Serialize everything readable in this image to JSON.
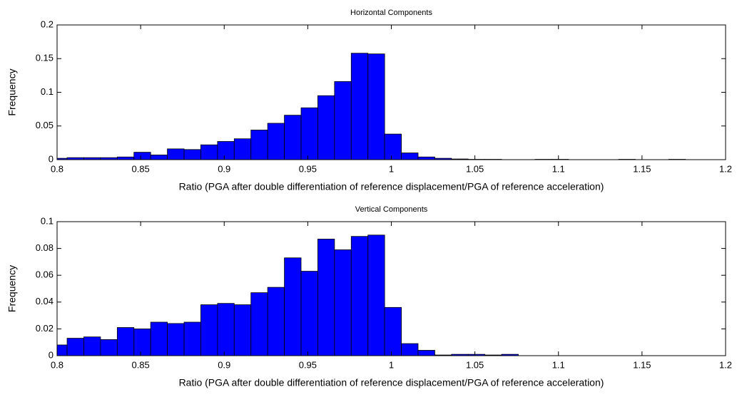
{
  "chart_data": [
    {
      "type": "histogram",
      "title": "Horizontal Components",
      "xlabel": "Ratio (PGA after double differentiation of reference displacement/PGA of reference acceleration)",
      "ylabel": "Frequency",
      "color": "#0000ff",
      "bins": [
        0.8,
        0.806,
        0.816,
        0.826,
        0.836,
        0.846,
        0.856,
        0.866,
        0.876,
        0.886,
        0.896,
        0.906,
        0.916,
        0.926,
        0.936,
        0.946,
        0.956,
        0.966,
        0.976,
        0.986,
        0.996,
        1.006,
        1.016,
        1.026,
        1.036,
        1.046,
        1.056,
        1.066,
        1.076,
        1.086,
        1.096,
        1.106,
        1.116,
        1.126,
        1.136,
        1.146,
        1.156,
        1.166,
        1.176,
        1.186,
        1.196,
        1.2
      ],
      "values": [
        0.002,
        0.003,
        0.003,
        0.003,
        0.004,
        0.011,
        0.007,
        0.016,
        0.015,
        0.022,
        0.027,
        0.031,
        0.044,
        0.054,
        0.066,
        0.077,
        0.095,
        0.116,
        0.158,
        0.157,
        0.038,
        0.01,
        0.004,
        0.002,
        0.001,
        0.0005,
        0.0005,
        0,
        0,
        0.0005,
        0.0005,
        0,
        0,
        0,
        0.0005,
        0,
        0,
        0.0005,
        0,
        0,
        0
      ],
      "xlim": [
        0.8,
        1.2
      ],
      "xticks": [
        0.8,
        0.85,
        0.9,
        0.95,
        1,
        1.05,
        1.1,
        1.15,
        1.2
      ],
      "ylim": [
        0,
        0.2
      ],
      "yticks": [
        0,
        0.05,
        0.1,
        0.15,
        0.2
      ]
    },
    {
      "type": "histogram",
      "title": "Vertical Components",
      "xlabel": "Ratio (PGA after double differentiation of reference displacement/PGA of reference acceleration)",
      "ylabel": "Frequency",
      "color": "#0000ff",
      "bins": [
        0.8,
        0.806,
        0.816,
        0.826,
        0.836,
        0.846,
        0.856,
        0.866,
        0.876,
        0.886,
        0.896,
        0.906,
        0.916,
        0.926,
        0.936,
        0.946,
        0.956,
        0.966,
        0.976,
        0.986,
        0.996,
        1.006,
        1.016,
        1.026,
        1.036,
        1.046,
        1.056,
        1.066,
        1.076,
        1.086,
        1.096,
        1.106,
        1.116,
        1.126,
        1.136,
        1.146,
        1.156,
        1.166,
        1.176,
        1.186,
        1.196,
        1.2
      ],
      "values": [
        0.008,
        0.013,
        0.014,
        0.012,
        0.021,
        0.02,
        0.025,
        0.024,
        0.025,
        0.038,
        0.039,
        0.038,
        0.047,
        0.051,
        0.073,
        0.063,
        0.087,
        0.079,
        0.089,
        0.09,
        0.036,
        0.009,
        0.004,
        0.0005,
        0.001,
        0.001,
        0.0005,
        0.001,
        0,
        0,
        0,
        0,
        0,
        0,
        0,
        0,
        0,
        0,
        0,
        0,
        0
      ],
      "xlim": [
        0.8,
        1.2
      ],
      "xticks": [
        0.8,
        0.85,
        0.9,
        0.95,
        1,
        1.05,
        1.1,
        1.15,
        1.2
      ],
      "ylim": [
        0,
        0.1
      ],
      "yticks": [
        0,
        0.02,
        0.04,
        0.06,
        0.08,
        0.1
      ]
    }
  ]
}
